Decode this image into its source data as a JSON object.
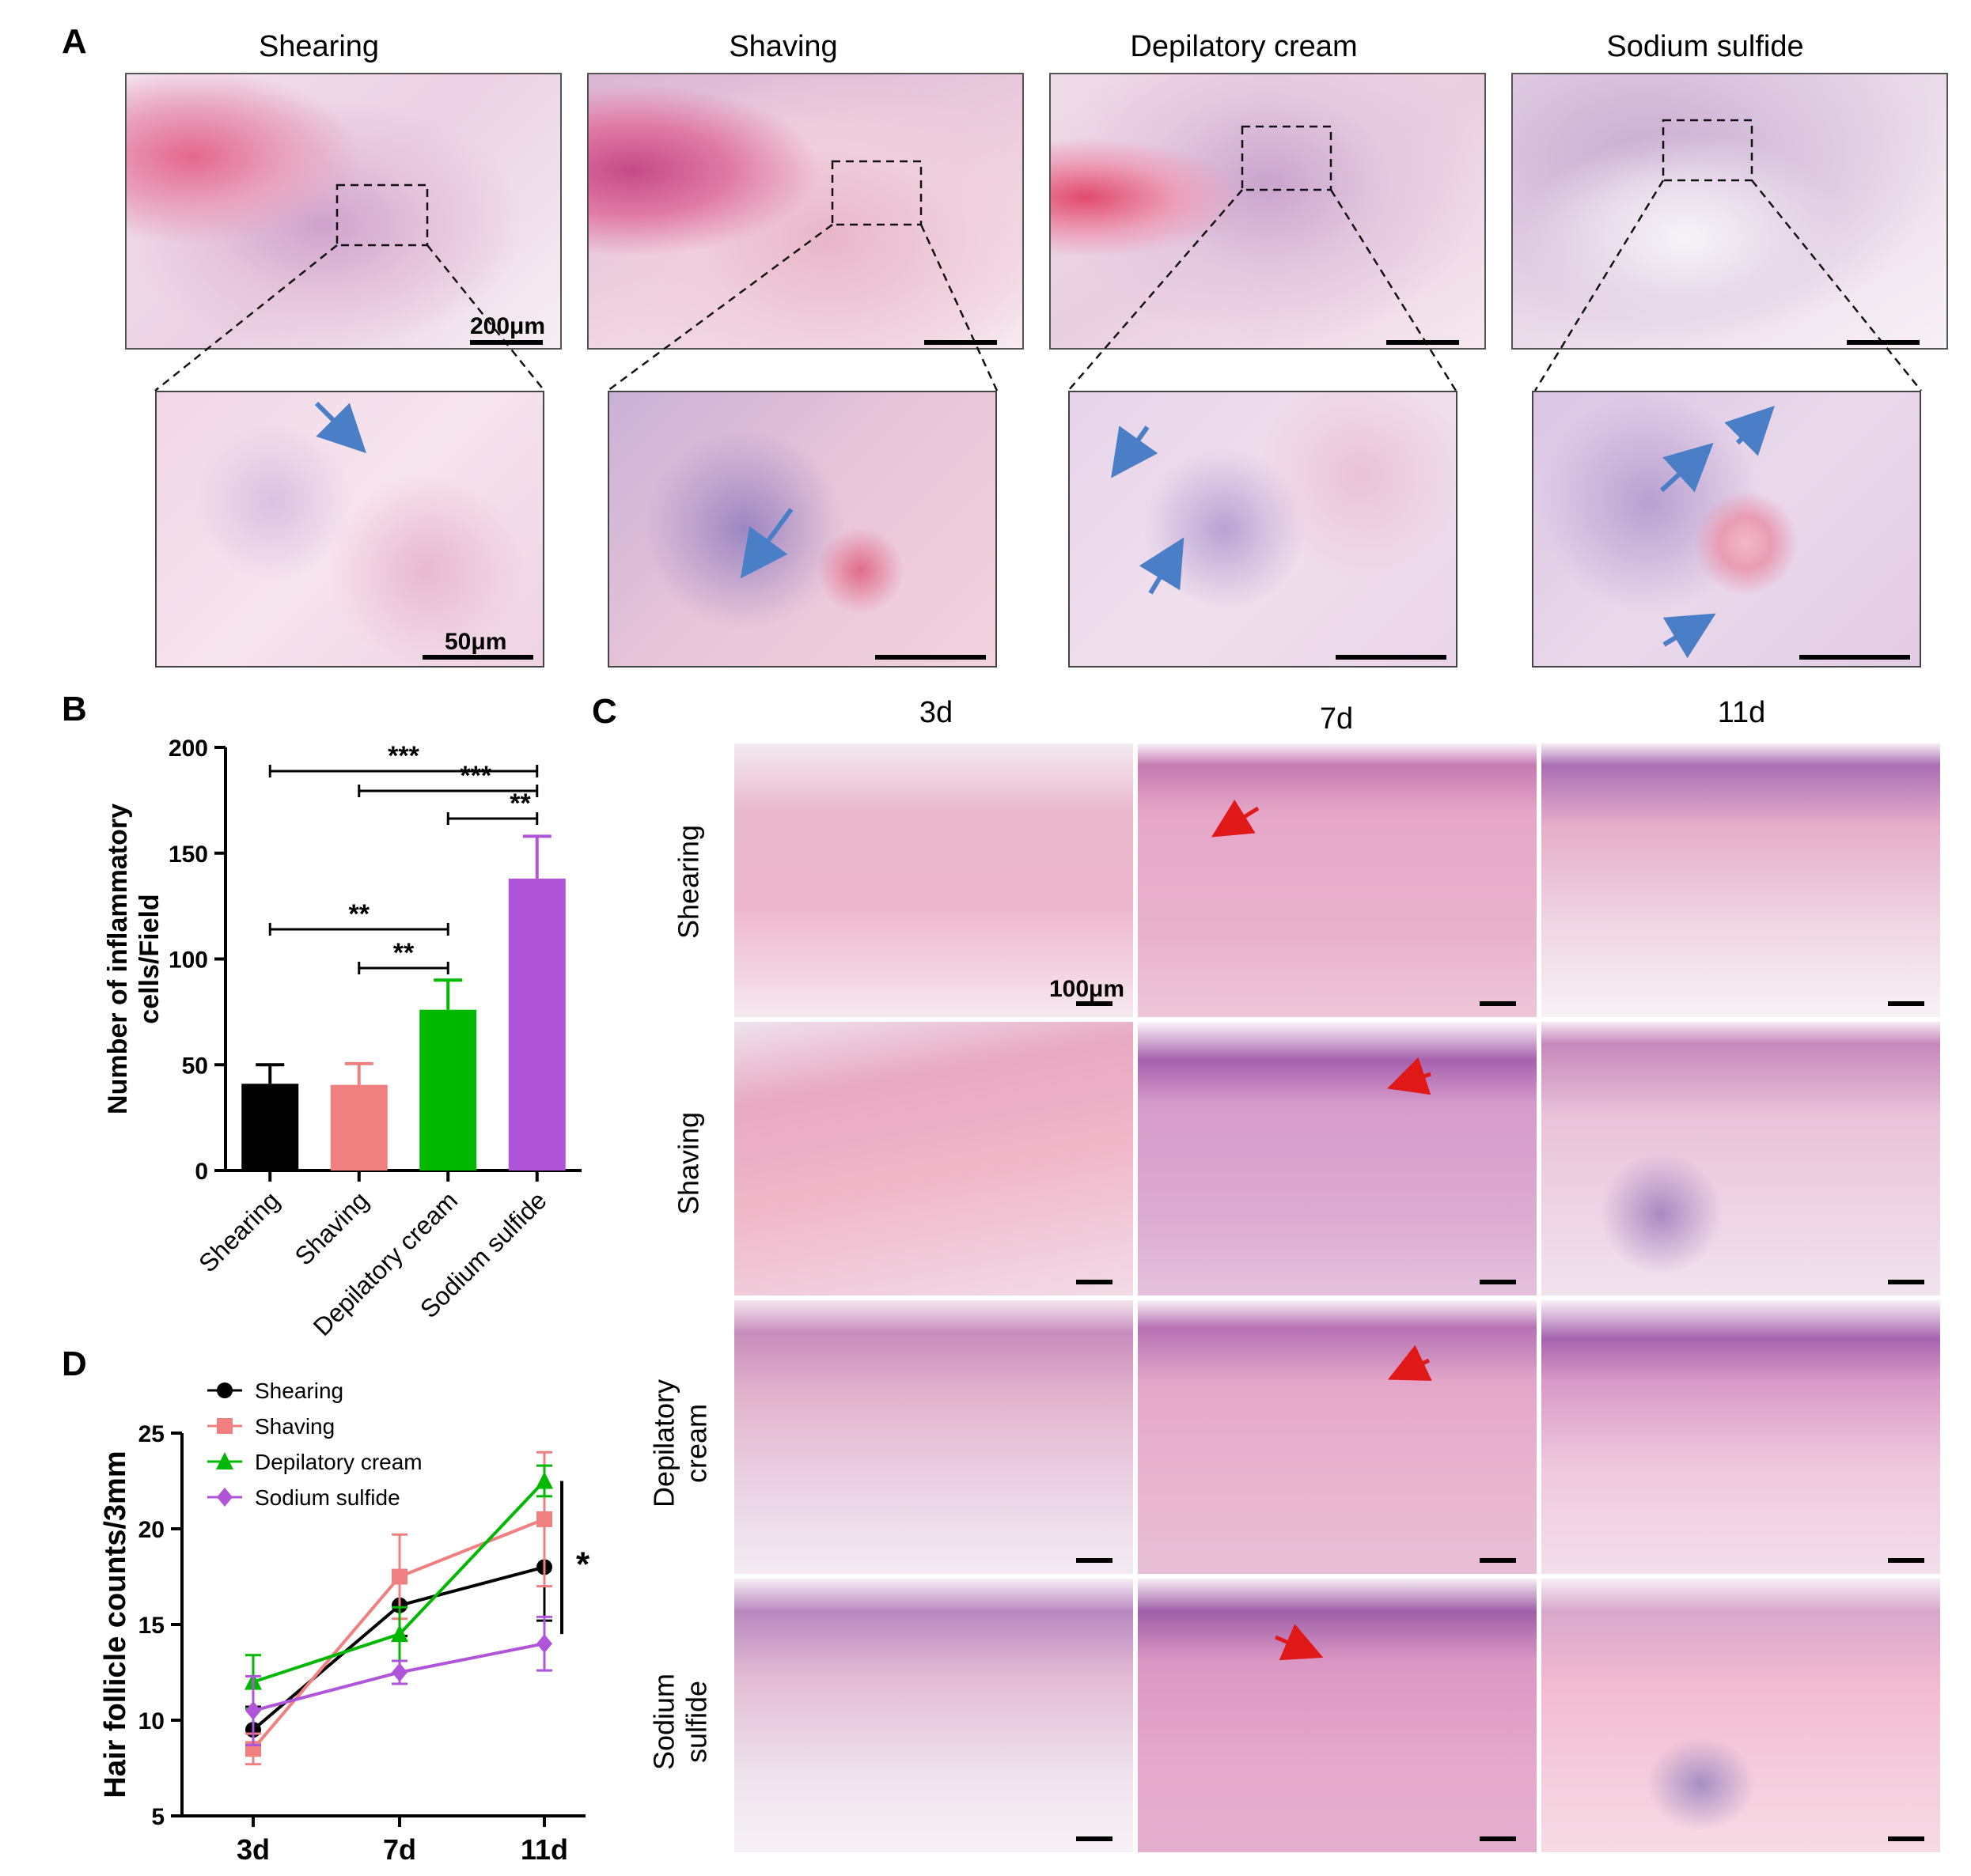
{
  "panel_labels": {
    "a": "A",
    "b": "B",
    "c": "C",
    "d": "D"
  },
  "panel_a": {
    "titles": [
      "Shearing",
      "Shaving",
      "Depilatory cream",
      "Sodium sulfide"
    ],
    "scale_overview": "200μm",
    "scale_zoom": "50μm"
  },
  "panel_c": {
    "columns": [
      "3d",
      "7d",
      "11d"
    ],
    "rows": [
      "Shearing",
      "Shaving",
      "Depilatory\ncream",
      "Sodium\nsulfide"
    ],
    "scale_label": "100μm"
  },
  "chart_data": [
    {
      "type": "bar",
      "panel": "B",
      "ylabel": "Number of inflammatory cells/Field",
      "ylim": [
        0,
        200
      ],
      "yticks": [
        0,
        50,
        100,
        150,
        200
      ],
      "categories": [
        "Shearing",
        "Shaving",
        "Depilatory cream",
        "Sodium sulfide"
      ],
      "values": [
        41,
        40.5,
        76,
        138
      ],
      "errors": [
        9,
        10,
        14,
        20
      ],
      "colors": [
        "#000000",
        "#f08080",
        "#00b800",
        "#b054d8"
      ],
      "significance": [
        {
          "from": 0,
          "to": 3,
          "label": "***"
        },
        {
          "from": 1,
          "to": 3,
          "label": "***"
        },
        {
          "from": 2,
          "to": 3,
          "label": "**"
        },
        {
          "from": 0,
          "to": 2,
          "label": "**"
        },
        {
          "from": 1,
          "to": 2,
          "label": "**"
        }
      ]
    },
    {
      "type": "line",
      "panel": "D",
      "ylabel": "Hair follicle counts/3mm",
      "x": [
        "3d",
        "7d",
        "11d"
      ],
      "ylim": [
        5,
        25
      ],
      "yticks": [
        5,
        10,
        15,
        20,
        25
      ],
      "series": [
        {
          "name": "Shearing",
          "color": "#000000",
          "marker": "circle",
          "values": [
            9.5,
            16,
            18
          ],
          "errors": [
            1.2,
            1.6,
            2.8
          ]
        },
        {
          "name": "Shaving",
          "color": "#f08080",
          "marker": "square",
          "values": [
            8.5,
            17.5,
            20.5
          ],
          "errors": [
            0.8,
            2.2,
            3.5
          ]
        },
        {
          "name": "Depilatory cream",
          "color": "#00b800",
          "marker": "triangle",
          "values": [
            12,
            14.5,
            22.5
          ],
          "errors": [
            1.4,
            1.4,
            0.8
          ]
        },
        {
          "name": "Sodium sulfide",
          "color": "#b054d8",
          "marker": "diamond",
          "values": [
            10.5,
            12.5,
            14
          ],
          "errors": [
            1.8,
            0.6,
            1.4
          ]
        }
      ],
      "significance": "*",
      "legend_position": "top-left"
    }
  ]
}
